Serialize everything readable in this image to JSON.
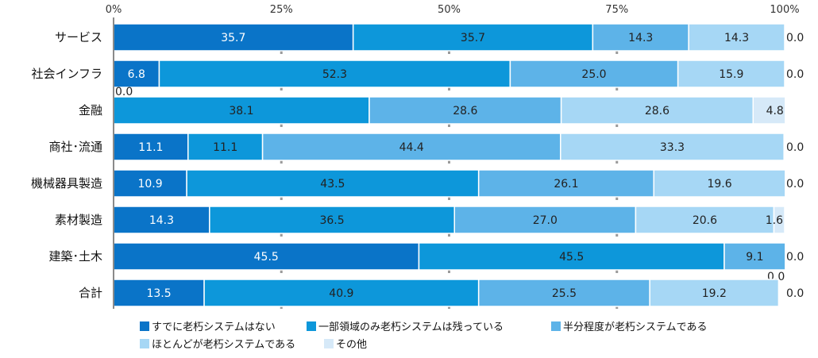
{
  "chart_data": {
    "type": "bar",
    "orientation": "horizontal",
    "stacked": "100%",
    "categories": [
      "サービス",
      "社会インフラ",
      "金融",
      "商社･流通",
      "機械器具製造",
      "素材製造",
      "建築･土木",
      "合計"
    ],
    "x_ticks": [
      "0%",
      "25%",
      "50%",
      "75%",
      "100%"
    ],
    "xlim": [
      0,
      100
    ],
    "legend_position": "bottom",
    "series": [
      {
        "name": "すでに老朽システムはない",
        "color": "#0a74c8",
        "values": [
          35.7,
          6.8,
          0.0,
          11.1,
          10.9,
          14.3,
          45.5,
          13.5
        ],
        "labels": [
          "35.7",
          "6.8",
          "0.0",
          "11.1",
          "10.9",
          "14.3",
          "45.5",
          "13.5"
        ]
      },
      {
        "name": "一部領域のみ老朽システムは残っている",
        "color": "#0d97da",
        "values": [
          35.7,
          52.3,
          38.1,
          11.1,
          43.5,
          36.5,
          45.5,
          40.9
        ],
        "labels": [
          "35.7",
          "52.3",
          "38.1",
          "11.1",
          "43.5",
          "36.5",
          "45.5",
          "40.9"
        ]
      },
      {
        "name": "半分程度が老朽システムである",
        "color": "#5db3e8",
        "values": [
          14.3,
          25.0,
          28.6,
          44.4,
          26.1,
          27.0,
          9.1,
          25.5
        ],
        "labels": [
          "14.3",
          "25.0",
          "28.6",
          "44.4",
          "26.1",
          "27.0",
          "9.1",
          "25.5"
        ]
      },
      {
        "name": "ほとんどが老朽システムである",
        "color": "#a6d7f5",
        "values": [
          14.3,
          15.9,
          28.6,
          33.3,
          19.6,
          20.6,
          0.0,
          19.2
        ],
        "labels": [
          "14.3",
          "15.9",
          "28.6",
          "33.3",
          "19.6",
          "20.6",
          "0.0",
          "19.2"
        ]
      },
      {
        "name": "その他",
        "color": "#d6e9f8",
        "values": [
          0.0,
          0.0,
          4.8,
          0.0,
          0.0,
          1.6,
          0.0,
          0.0
        ],
        "labels": [
          "0.0",
          "0.0",
          "4.8",
          "0.0",
          "0.0",
          "1.6",
          "0.0",
          "0.0"
        ]
      }
    ]
  }
}
